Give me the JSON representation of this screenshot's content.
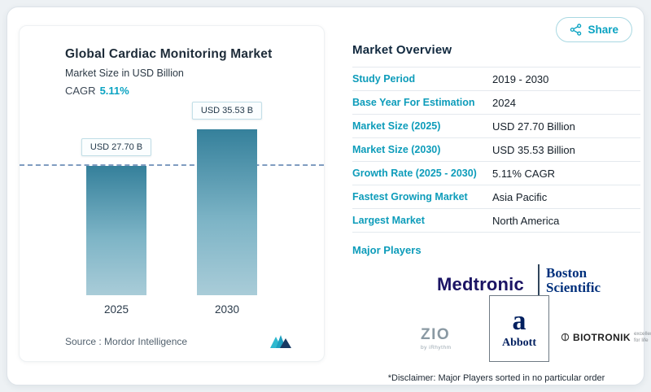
{
  "share": {
    "label": "Share"
  },
  "chart_card": {
    "title": "Global Cardiac Monitoring Market",
    "subtitle": "Market Size in USD Billion",
    "cagr_label": "CAGR",
    "cagr_value": "5.11%",
    "source_label": "Source :  Mordor Intelligence"
  },
  "chart_data": {
    "type": "bar",
    "title": "Global Cardiac Monitoring Market",
    "subtitle": "Market Size in USD Billion",
    "cagr": "5.11%",
    "categories": [
      "2025",
      "2030"
    ],
    "values": [
      27.7,
      35.53
    ],
    "bar_labels": [
      "USD 27.70 B",
      "USD 35.53 B"
    ],
    "ylim": [
      0,
      40
    ],
    "ylabel": "USD Billion",
    "grid": false,
    "reference_line": {
      "at_value": 27.7,
      "style": "dashed"
    },
    "bar_color_top": "#35809b",
    "bar_color_bottom": "#a9ccd8"
  },
  "overview": {
    "title": "Market Overview",
    "rows": [
      {
        "label": "Study Period",
        "value": "2019 - 2030"
      },
      {
        "label": "Base Year For Estimation",
        "value": "2024"
      },
      {
        "label": "Market Size (2025)",
        "value": "USD 27.70 Billion"
      },
      {
        "label": "Market Size (2030)",
        "value": "USD 35.53 Billion"
      },
      {
        "label": "Growth Rate (2025 - 2030)",
        "value": "5.11% CAGR"
      },
      {
        "label": "Fastest Growing Market",
        "value": "Asia Pacific"
      },
      {
        "label": "Largest Market",
        "value": "North America"
      }
    ],
    "major_players_label": "Major Players",
    "players": [
      "Medtronic",
      "Boston Scientific",
      "ZIO by iRhythm",
      "Abbott",
      "BIOTRONIK"
    ],
    "disclaimer": "*Disclaimer: Major Players sorted in no particular order"
  },
  "logos": {
    "medtronic": "Medtronic",
    "boston_line1": "Boston",
    "boston_line2": "Scientific",
    "zio": "ZIO",
    "zio_sub": "by iRhythm",
    "abbott_symbol": "a",
    "abbott": "Abbott",
    "biotronik": "BIOTRONIK",
    "biotronik_tagline": "excellence for life"
  },
  "colors": {
    "accent_teal": "#0aa3c2",
    "heading_navy": "#11293f",
    "ref_line": "#7f9cc0"
  }
}
